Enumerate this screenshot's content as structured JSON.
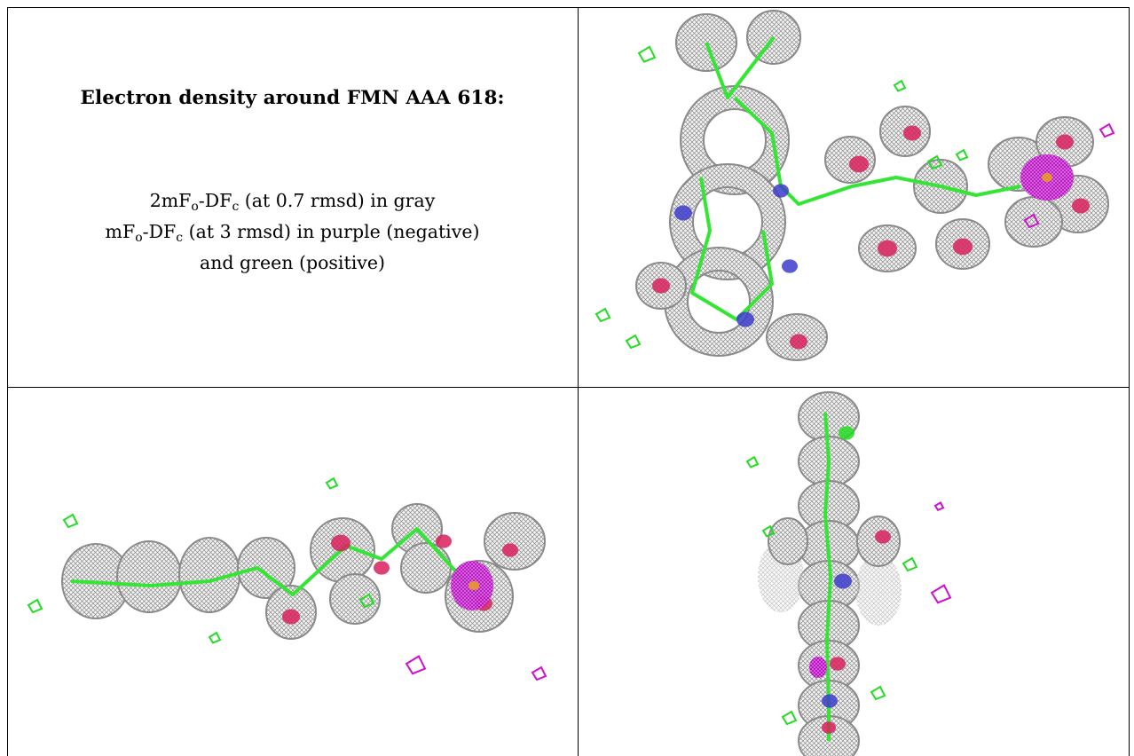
{
  "caption": {
    "title": "Electron density around FMN AAA 618:",
    "line1": {
      "pre": "2mF",
      "s1": "o",
      "mid": "-DF",
      "s2": "c",
      "post": " (at 0.7 rmsd) in gray"
    },
    "line2": {
      "pre": "mF",
      "s1": "o",
      "mid": "-DF",
      "s2": "c",
      "post": " (at 3 rmsd) in purple (negative)"
    },
    "line3": "and green (positive)"
  },
  "colors": {
    "mesh": "#8a8a8a",
    "bond": "#33e633",
    "oxygen": "#d8205a",
    "nitrogen": "#3c3ccc",
    "phosphorus": "#e8a020",
    "negative": "#d010d0",
    "positive": "#22dd22"
  },
  "views": [
    {
      "name": "view-top-right"
    },
    {
      "name": "view-bottom-left"
    },
    {
      "name": "view-bottom-right"
    }
  ]
}
